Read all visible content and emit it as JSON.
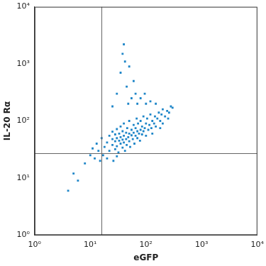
{
  "chart_data": {
    "type": "scatter",
    "x_label": "eGFP",
    "y_label": "IL-20 Rα",
    "log": true,
    "grid": false,
    "marker": "square",
    "color": "#1f86c8",
    "xlim": [
      1,
      10000
    ],
    "ylim": [
      1,
      10000
    ],
    "xticks": [
      {
        "value": 1,
        "label": "10⁰"
      },
      {
        "value": 10,
        "label": "10¹"
      },
      {
        "value": 100,
        "label": "10²"
      },
      {
        "value": 1000,
        "label": "10³"
      },
      {
        "value": 10000,
        "label": "10⁴"
      }
    ],
    "yticks": [
      {
        "value": 1,
        "label": "10⁰"
      },
      {
        "value": 10,
        "label": "10¹"
      },
      {
        "value": 100,
        "label": "10²"
      },
      {
        "value": 1000,
        "label": "10³"
      },
      {
        "value": 10000,
        "label": "10⁴"
      }
    ],
    "quadrant": {
      "x": 16,
      "y": 27
    },
    "x": [
      18,
      20,
      22,
      22,
      25,
      25,
      25,
      28,
      28,
      28,
      30,
      30,
      30,
      32,
      33,
      33,
      35,
      35,
      35,
      38,
      38,
      38,
      40,
      40,
      40,
      42,
      44,
      44,
      45,
      46,
      48,
      50,
      50,
      50,
      52,
      55,
      55,
      58,
      60,
      60,
      62,
      65,
      65,
      68,
      70,
      70,
      72,
      75,
      78,
      80,
      80,
      85,
      85,
      90,
      90,
      95,
      100,
      100,
      105,
      110,
      115,
      120,
      125,
      130,
      140,
      145,
      150,
      160,
      170,
      180,
      190,
      200,
      220,
      240,
      260,
      280,
      30,
      35,
      38,
      40,
      45,
      50,
      55,
      60,
      65,
      70,
      25,
      42,
      48,
      80,
      100,
      120,
      150,
      95,
      4,
      5,
      6,
      8,
      10,
      12,
      14,
      15,
      17,
      20,
      26,
      30,
      13,
      11,
      16,
      200,
      250,
      300,
      180,
      130
    ],
    "values": [
      35,
      42,
      30,
      55,
      38,
      48,
      65,
      32,
      44,
      58,
      36,
      50,
      72,
      28,
      45,
      60,
      40,
      52,
      80,
      34,
      47,
      66,
      42,
      55,
      90,
      30,
      48,
      62,
      38,
      75,
      52,
      44,
      60,
      100,
      35,
      56,
      70,
      48,
      62,
      85,
      40,
      55,
      75,
      110,
      50,
      66,
      90,
      60,
      45,
      70,
      100,
      58,
      80,
      120,
      66,
      75,
      55,
      90,
      110,
      70,
      85,
      130,
      75,
      100,
      90,
      120,
      80,
      110,
      140,
      100,
      130,
      160,
      120,
      150,
      140,
      180,
      300,
      700,
      1500,
      2200,
      400,
      900,
      250,
      500,
      300,
      200,
      180,
      1100,
      200,
      250,
      200,
      220,
      200,
      300,
      6,
      12,
      9,
      18,
      25,
      22,
      30,
      20,
      25,
      22,
      20,
      24,
      40,
      33,
      50,
      90,
      110,
      170,
      75,
      60
    ]
  }
}
